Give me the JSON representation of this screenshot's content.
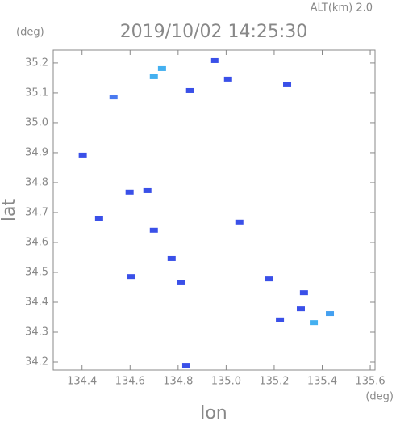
{
  "chart_data": {
    "type": "scatter",
    "header": "ALT(km) 2.0",
    "title": "2019/10/02 14:25:30",
    "y_unit": "(deg)",
    "x_unit": "(deg)",
    "x_label": "lon",
    "y_label": "lat",
    "xlim": [
      134.28,
      135.62
    ],
    "ylim": [
      34.173,
      35.243
    ],
    "xticks": [
      134.4,
      134.6,
      134.8,
      {
        "value": 135.0,
        "label": "135.0"
      },
      135.2,
      135.4,
      135.6
    ],
    "yticks": [
      34.2,
      34.3,
      34.4,
      34.5,
      34.6,
      34.7,
      34.8,
      34.9,
      {
        "value": 35.0,
        "label": "35.0"
      },
      35.1,
      35.2
    ],
    "x": [
      134.531,
      134.699,
      134.733,
      134.85,
      134.951,
      135.008,
      135.254,
      134.403,
      134.598,
      134.672,
      134.471,
      134.699,
      135.055,
      134.773,
      134.605,
      134.813,
      135.324,
      135.311,
      135.224,
      135.432,
      135.365,
      134.834,
      135.18
    ],
    "y": [
      35.086,
      35.154,
      35.181,
      35.108,
      35.208,
      35.146,
      35.127,
      34.892,
      34.768,
      34.773,
      34.681,
      34.641,
      34.668,
      34.546,
      34.486,
      34.465,
      34.432,
      34.378,
      34.341,
      34.362,
      34.332,
      34.189,
      34.478
    ],
    "colors": [
      "#4a7af0",
      "#44b0f0",
      "#44b0f0",
      "#3a50e8",
      "#3a50e8",
      "#3a50e8",
      "#3a50e8",
      "#3a50e8",
      "#3a50e8",
      "#3a50e8",
      "#3a50e8",
      "#3a50e8",
      "#3a50e8",
      "#3a50e8",
      "#3a50e8",
      "#3a50e8",
      "#3a50e8",
      "#3a50e8",
      "#3a50e8",
      "#44a0f0",
      "#44b0f0",
      "#3a50e8",
      "#3a50e8"
    ]
  }
}
